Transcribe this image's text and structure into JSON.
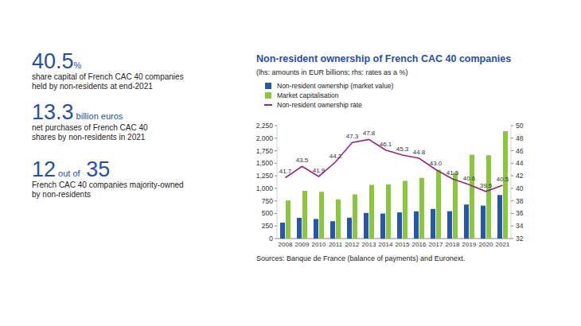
{
  "key_figures": [
    {
      "value": 40.5,
      "unit": "%",
      "text": [
        "share capital of French CAC 40 companies",
        "held by non-residents at end-2021"
      ]
    },
    {
      "value": 13.3,
      "unit": "billion euros",
      "text": [
        "net purchases of French CAC 40",
        "shares by non-residents in 2021"
      ]
    },
    {
      "value": 12,
      "unit": "out of",
      "total": 35,
      "text": [
        "French CAC 40 companies majority-owned",
        "by non-residents"
      ]
    }
  ],
  "chart_data": {
    "type": "bar",
    "title": "Non-resident ownership of French CAC 40 companies",
    "subtitle": "(lhs: amounts in EUR billions; rhs: rates as a %)",
    "source": "Sources: Banque de France (balance of payments) and Euronext.",
    "categories": [
      "2008",
      "2009",
      "2010",
      "2011",
      "2012",
      "2013",
      "2014",
      "2015",
      "2016",
      "2017",
      "2018",
      "2019",
      "2020",
      "2021"
    ],
    "series": [
      {
        "name": "Non-resident ownership (market value)",
        "type": "bar",
        "color": "#2558a8",
        "values": [
          317,
          413,
          390,
          345,
          416,
          511,
          498,
          521,
          542,
          589,
          544,
          678,
          656,
          867
        ]
      },
      {
        "name": "Market capitalisation",
        "type": "bar",
        "color": "#8cc63f",
        "values": [
          760,
          950,
          930,
          780,
          880,
          1070,
          1080,
          1150,
          1210,
          1370,
          1310,
          1670,
          1660,
          2140
        ]
      },
      {
        "name": "Non-resident ownership rate",
        "type": "line",
        "color": "#8e2a7e",
        "axis": "y2",
        "data_labels": true,
        "values": [
          41.7,
          43.5,
          41.9,
          44.2,
          47.3,
          47.8,
          46.1,
          45.3,
          44.8,
          43.0,
          41.5,
          40.6,
          39.5,
          40.5
        ],
        "value_labels": [
          "41.7",
          "43.5",
          "41.9",
          "44.2",
          "47.3",
          "47.8",
          "46.1",
          "45.3",
          "44.8",
          "43.0",
          "41.5",
          "40.6",
          "39.5",
          "40.5"
        ]
      }
    ],
    "ylim": [
      0,
      2250
    ],
    "yticks": [
      0,
      250,
      500,
      750,
      {
        "value": 1000,
        "label": "1,000"
      },
      {
        "value": 1250,
        "label": "1,250"
      },
      {
        "value": 1500,
        "label": "1,500"
      },
      {
        "value": 1750,
        "label": "1,750"
      },
      {
        "value": 2000,
        "label": "2,000"
      },
      {
        "value": 2250,
        "label": "2,250"
      }
    ],
    "y2lim": [
      32,
      50
    ],
    "y2ticks": [
      32,
      34,
      36,
      38,
      40,
      42,
      44,
      46,
      48,
      50
    ],
    "grid": false,
    "legend": "top-left"
  }
}
